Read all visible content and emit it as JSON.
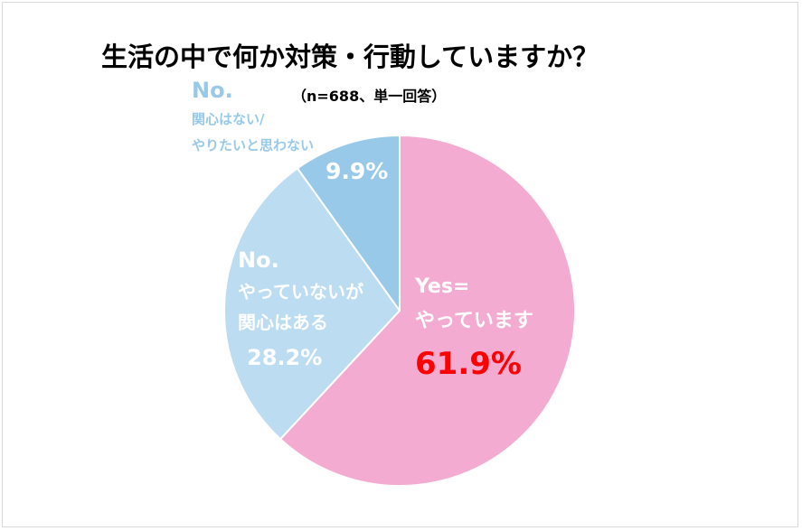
{
  "title": "生活の中で何か対策・行動していますか？",
  "subtitle": "（n=688、単一回答）",
  "chart_data": {
    "type": "pie",
    "start_angle_deg": 0,
    "direction": "clockwise",
    "slices": [
      {
        "label_lines": [
          "Yes=",
          "やっています"
        ],
        "value": 61.9,
        "value_label": "61.9%",
        "color": "#f4abd1",
        "text_color": "#ffffff",
        "value_color": "#ff0000"
      },
      {
        "label_lines": [
          "No.",
          "やっていないが",
          "関心はある"
        ],
        "value": 28.2,
        "value_label": "28.2%",
        "color": "#bcdcf1",
        "text_color": "#ffffff",
        "value_color": "#ffffff"
      },
      {
        "label_lines": [
          "No.",
          "関心はない/",
          "やりたいと思わない"
        ],
        "value": 9.9,
        "value_label": "9.9%",
        "color": "#98c9e9",
        "text_color": "#98c9e9",
        "value_color": "#ffffff"
      }
    ]
  }
}
